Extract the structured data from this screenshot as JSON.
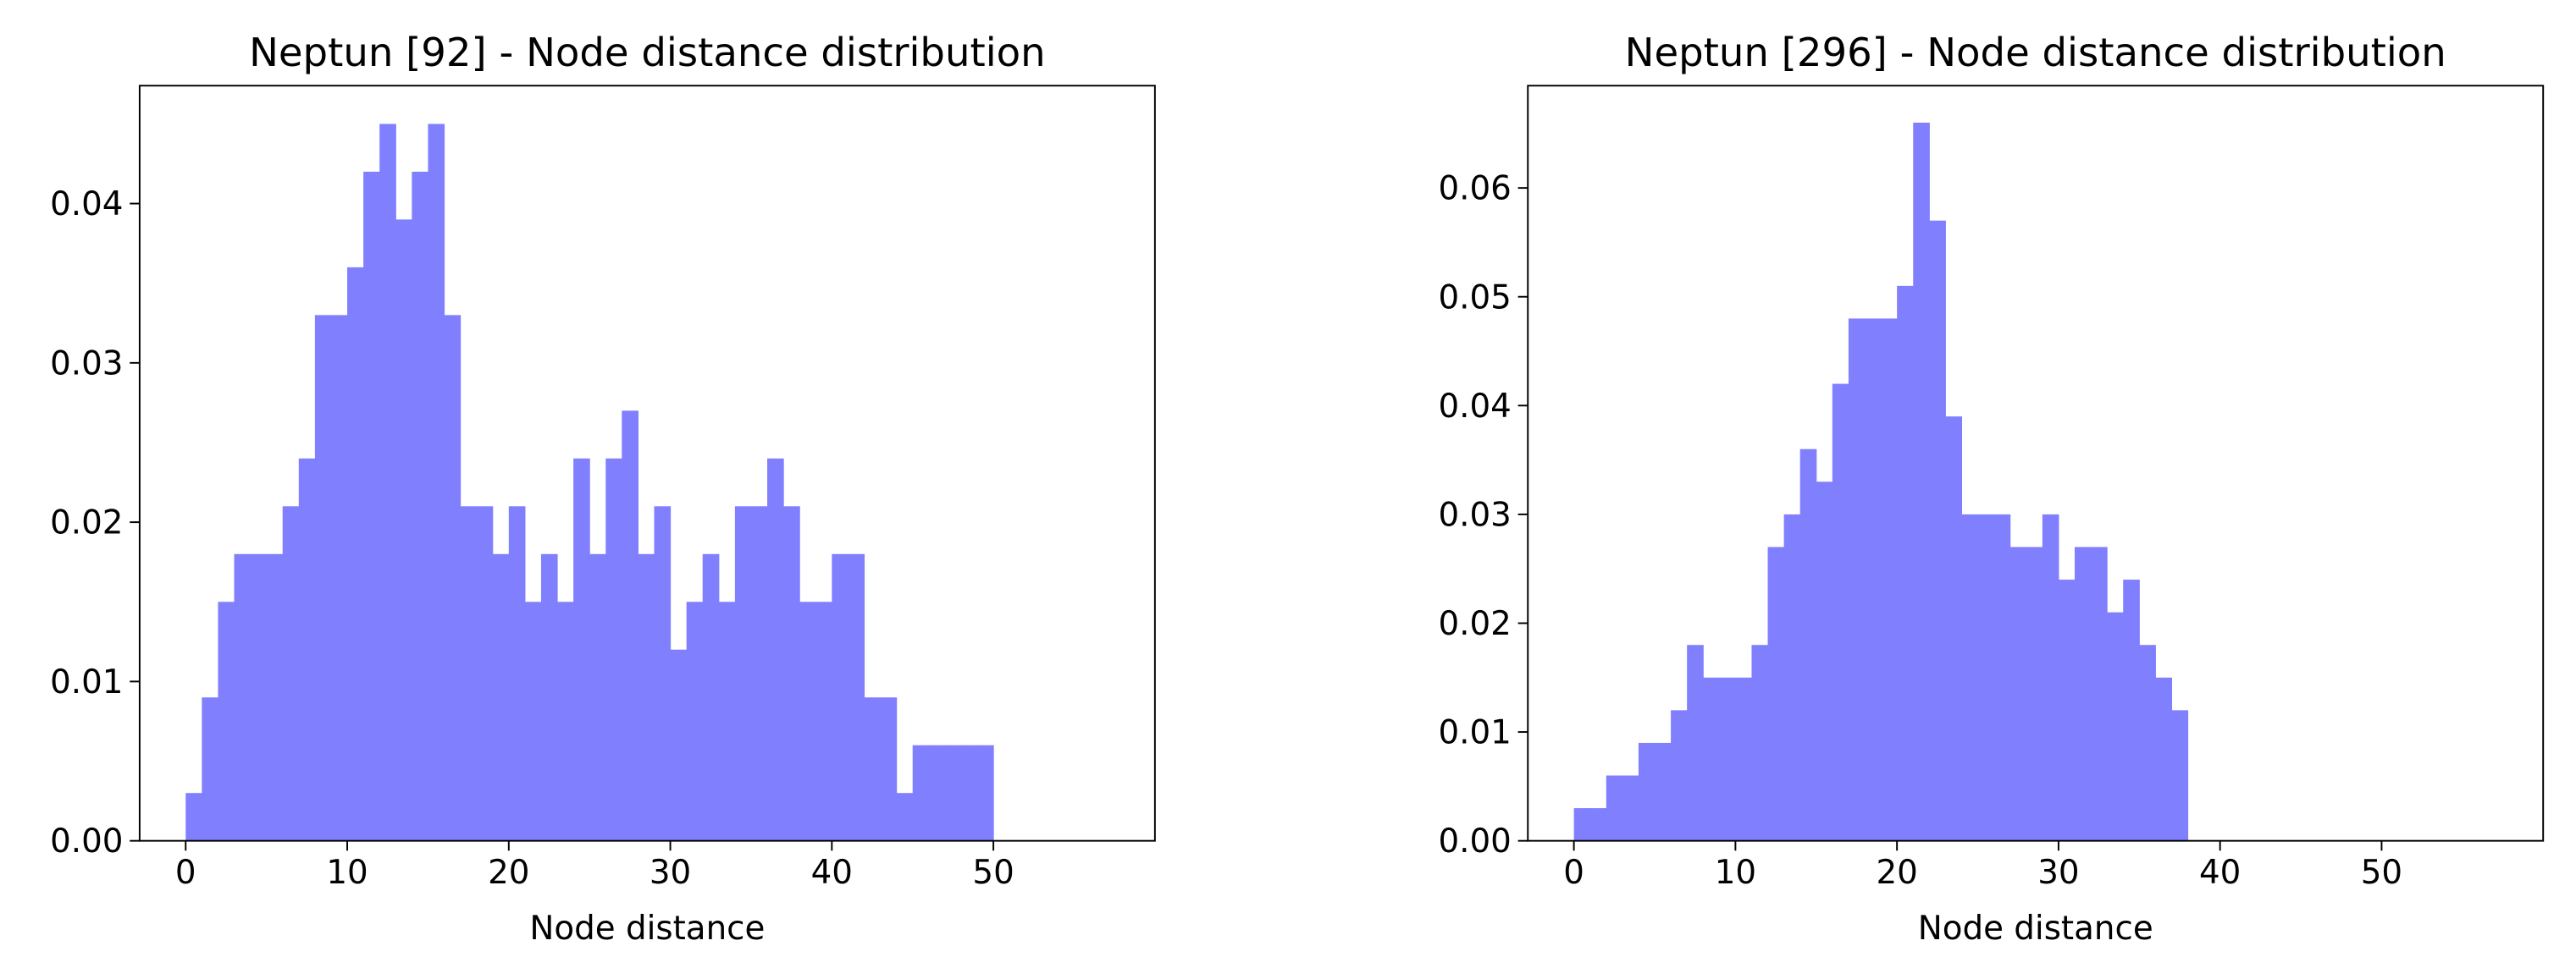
{
  "chart_data": [
    {
      "type": "histogram",
      "title": "Neptun [92] - Node distance distribution",
      "xlabel": "Node distance",
      "color": "#8080ff",
      "bins": [
        0,
        1,
        2,
        3,
        4,
        5,
        6,
        7,
        8,
        9,
        10,
        11,
        12,
        13,
        14,
        15,
        16,
        17,
        18,
        19,
        20,
        21,
        22,
        23,
        24,
        25,
        26,
        27,
        28,
        29,
        30,
        31,
        32,
        33,
        34,
        35,
        36,
        37,
        38,
        39,
        40,
        41,
        42,
        43,
        44,
        45,
        46,
        47,
        48,
        49,
        50
      ],
      "values": [
        0.003,
        0.009,
        0.015,
        0.018,
        0.018,
        0.018,
        0.021,
        0.024,
        0.033,
        0.033,
        0.036,
        0.042,
        0.045,
        0.039,
        0.042,
        0.045,
        0.033,
        0.021,
        0.021,
        0.018,
        0.021,
        0.015,
        0.018,
        0.015,
        0.024,
        0.018,
        0.024,
        0.027,
        0.018,
        0.021,
        0.012,
        0.015,
        0.018,
        0.015,
        0.021,
        0.021,
        0.024,
        0.021,
        0.015,
        0.015,
        0.018,
        0.018,
        0.009,
        0.009,
        0.003,
        0.006,
        0.006,
        0.006,
        0.006,
        0.006
      ],
      "xlim": [
        -2.85,
        60
      ],
      "xticks": [
        0,
        10,
        20,
        30,
        40,
        50
      ],
      "ylim": [
        0,
        0.0474
      ],
      "yticks": [
        {
          "value": 0,
          "label": "0.00"
        },
        0.01,
        0.02,
        0.03,
        0.04
      ]
    },
    {
      "type": "histogram",
      "title": "Neptun [296] - Node distance distribution",
      "xlabel": "Node distance",
      "color": "#8080ff",
      "bins": [
        0,
        1,
        2,
        3,
        4,
        5,
        6,
        7,
        8,
        9,
        10,
        11,
        12,
        13,
        14,
        15,
        16,
        17,
        18,
        19,
        20,
        21,
        22,
        23,
        24,
        25,
        26,
        27,
        28,
        29,
        30,
        31,
        32,
        33,
        34,
        35,
        36,
        37,
        38
      ],
      "values": [
        0.003,
        0.003,
        0.006,
        0.006,
        0.009,
        0.009,
        0.012,
        0.018,
        0.015,
        0.015,
        0.015,
        0.018,
        0.027,
        0.03,
        0.036,
        0.033,
        0.042,
        0.048,
        0.048,
        0.048,
        0.051,
        0.066,
        0.057,
        0.039,
        0.03,
        0.03,
        0.03,
        0.027,
        0.027,
        0.03,
        0.024,
        0.027,
        0.027,
        0.021,
        0.024,
        0.018,
        0.015,
        0.012
      ],
      "xlim": [
        -2.85,
        60
      ],
      "xticks": [
        0,
        10,
        20,
        30,
        40,
        50
      ],
      "ylim": [
        0,
        0.0694
      ],
      "yticks": [
        {
          "value": 0,
          "label": "0.00"
        },
        0.01,
        0.02,
        0.03,
        0.04,
        0.05,
        0.06
      ]
    }
  ]
}
